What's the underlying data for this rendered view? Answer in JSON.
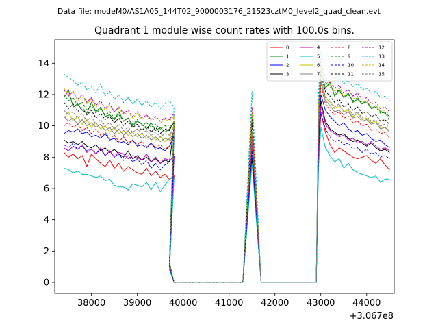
{
  "header": {
    "data_file": "Data file: modeM0/AS1A05_144T02_9000003176_21523cztM0_level2_quad_clean.evt"
  },
  "chart_data": {
    "type": "line",
    "title": "Quadrant 1 module wise count rates with 100.0s bins.",
    "xlabel": "",
    "ylabel": "",
    "x_offset_label": "+3.067e8",
    "xlim": [
      37200,
      44600
    ],
    "ylim": [
      -0.7,
      15.5
    ],
    "x_ticks": [
      38000,
      39000,
      40000,
      41000,
      42000,
      43000,
      44000
    ],
    "x_tick_labels": [
      "38000",
      "39000",
      "40000",
      "41000",
      "42000",
      "43000",
      "44000"
    ],
    "y_ticks": [
      0,
      2,
      4,
      6,
      8,
      10,
      12,
      14
    ],
    "y_tick_labels": [
      "0",
      "2",
      "4",
      "6",
      "8",
      "10",
      "12",
      "14"
    ],
    "legend_position": "top-right",
    "series": [
      {
        "name": "0",
        "color": "#ff0000",
        "style": "solid",
        "seg1": [
          8.3,
          8.0,
          8.2,
          7.9,
          8.1,
          7.4,
          8.2,
          7.9,
          7.6,
          7.4,
          7.8,
          7.3,
          7.6,
          7.1,
          7.4,
          7.2,
          7.0,
          6.9,
          7.3,
          6.8,
          7.1,
          6.7,
          6.9,
          6.6,
          6.8
        ],
        "peak": 8.6,
        "seg3": [
          8.0,
          10.8,
          9.6,
          8.8,
          8.3,
          8.6,
          8.4,
          8.2,
          8.0,
          7.9,
          8.0,
          8.1,
          7.8,
          7.6,
          7.9,
          7.5,
          7.2
        ]
      },
      {
        "name": "1",
        "color": "#008000",
        "style": "solid",
        "seg1": [
          11.8,
          12.3,
          11.2,
          11.4,
          11.0,
          10.8,
          11.5,
          10.9,
          11.2,
          10.6,
          10.7,
          10.4,
          10.9,
          10.3,
          10.5,
          10.0,
          10.3,
          10.1,
          9.8,
          10.2,
          9.7,
          9.9,
          9.6,
          9.8,
          10.2
        ],
        "peak": 10.6,
        "seg3": [
          10.8,
          13.6,
          12.4,
          12.8,
          11.9,
          12.3,
          11.8,
          12.1,
          11.5,
          11.7,
          11.4,
          11.6,
          11.1,
          11.3,
          10.9,
          10.8,
          10.6
        ]
      },
      {
        "name": "2",
        "color": "#0000ff",
        "style": "solid",
        "seg1": [
          9.5,
          9.7,
          9.6,
          9.8,
          9.5,
          9.6,
          9.3,
          9.4,
          9.2,
          9.5,
          9.1,
          9.2,
          8.9,
          9.0,
          8.8,
          9.1,
          8.7,
          8.8,
          8.6,
          8.9,
          8.5,
          8.6,
          8.4,
          8.7,
          9.3
        ],
        "peak": 8.0,
        "seg3": [
          9.0,
          12.0,
          11.0,
          10.6,
          10.3,
          10.0,
          10.2,
          9.8,
          9.6,
          9.7,
          9.4,
          9.5,
          9.2,
          9.0,
          9.1,
          8.8,
          8.6
        ]
      },
      {
        "name": "3",
        "color": "#000000",
        "style": "solid",
        "seg1": [
          9.1,
          8.9,
          9.0,
          8.8,
          9.0,
          8.7,
          8.6,
          8.8,
          8.4,
          8.6,
          8.3,
          8.5,
          8.2,
          8.0,
          8.4,
          7.9,
          8.1,
          7.8,
          8.0,
          7.7,
          7.9,
          7.6,
          7.8,
          7.7,
          9.9
        ],
        "peak": 7.8,
        "seg3": [
          8.5,
          11.6,
          10.3,
          9.8,
          9.6,
          9.4,
          9.5,
          9.2,
          9.0,
          9.1,
          8.9,
          8.7,
          8.9,
          8.6,
          8.4,
          8.5,
          8.3
        ]
      },
      {
        "name": "4",
        "color": "#bf00bf",
        "style": "solid",
        "seg1": [
          8.6,
          8.4,
          8.7,
          8.5,
          8.8,
          8.3,
          8.5,
          8.2,
          8.6,
          8.1,
          8.4,
          8.0,
          8.3,
          8.2,
          7.9,
          8.1,
          8.0,
          7.8,
          8.2,
          7.7,
          8.0,
          7.6,
          7.9,
          7.8,
          8.0
        ],
        "peak": 9.0,
        "seg3": [
          8.4,
          11.3,
          10.1,
          9.7,
          9.5,
          9.3,
          9.4,
          9.1,
          9.2,
          8.9,
          9.0,
          8.8,
          9.0,
          8.7,
          8.5,
          8.6,
          8.4
        ]
      },
      {
        "name": "5",
        "color": "#00bfbf",
        "style": "solid",
        "seg1": [
          7.3,
          7.2,
          7.0,
          7.1,
          6.9,
          6.9,
          6.8,
          6.7,
          6.8,
          6.5,
          6.6,
          6.2,
          6.1,
          6.1,
          5.9,
          6.3,
          6.2,
          6.1,
          6.4,
          5.9,
          6.4,
          5.8,
          6.2,
          6.6,
          6.7
        ],
        "peak": 7.6,
        "seg3": [
          7.3,
          9.9,
          8.6,
          8.1,
          7.7,
          7.9,
          7.3,
          7.6,
          7.2,
          7.0,
          6.9,
          6.8,
          6.7,
          6.8,
          6.4,
          6.6,
          6.6
        ]
      },
      {
        "name": "6",
        "color": "#bfbf00",
        "style": "solid",
        "seg1": [
          10.5,
          10.9,
          10.3,
          10.6,
          10.1,
          10.4,
          9.9,
          10.2,
          9.8,
          10.0,
          9.6,
          9.9,
          9.5,
          9.7,
          9.4,
          9.6,
          9.3,
          9.5,
          9.2,
          9.4,
          9.1,
          9.3,
          9.0,
          9.2,
          10.1
        ],
        "peak": 9.6,
        "seg3": [
          9.9,
          13.0,
          11.8,
          11.5,
          11.1,
          11.3,
          10.9,
          11.0,
          10.6,
          10.8,
          10.4,
          10.5,
          10.2,
          10.3,
          9.9,
          9.9,
          9.7
        ]
      },
      {
        "name": "7",
        "color": "#808080",
        "style": "solid",
        "seg1": [
          10.6,
          10.3,
          10.5,
          10.1,
          10.4,
          10.0,
          10.2,
          9.9,
          10.1,
          9.7,
          9.9,
          9.5,
          9.8,
          9.4,
          9.7,
          9.3,
          9.5,
          9.2,
          9.4,
          9.1,
          9.3,
          9.0,
          9.2,
          9.1,
          9.6
        ],
        "peak": 9.2,
        "seg3": [
          9.7,
          12.8,
          11.6,
          11.3,
          10.9,
          11.0,
          10.7,
          10.9,
          10.5,
          10.6,
          10.3,
          10.4,
          10.1,
          10.2,
          9.8,
          9.9,
          9.6
        ]
      },
      {
        "name": "8",
        "color": "#ff0000",
        "style": "dashed",
        "seg1": [
          10.0,
          10.2,
          9.9,
          10.1,
          9.7,
          9.9,
          9.5,
          9.8,
          9.4,
          9.6,
          9.2,
          9.4,
          9.0,
          9.3,
          8.9,
          9.1,
          8.8,
          9.0,
          8.7,
          8.9,
          8.6,
          8.8,
          8.5,
          8.7,
          9.8
        ],
        "peak": 9.4,
        "seg3": [
          9.6,
          12.6,
          11.4,
          11.0,
          10.7,
          10.9,
          10.5,
          10.6,
          10.2,
          10.3,
          10.0,
          10.1,
          9.7,
          9.8,
          9.5,
          9.6,
          9.2
        ]
      },
      {
        "name": "9",
        "color": "#008000",
        "style": "dashed",
        "seg1": [
          12.0,
          11.6,
          11.8,
          11.3,
          11.5,
          11.0,
          11.3,
          10.8,
          11.1,
          10.7,
          10.9,
          10.5,
          10.7,
          10.3,
          10.5,
          10.1,
          10.4,
          10.0,
          10.2,
          9.9,
          10.1,
          9.8,
          10.0,
          9.9,
          10.2
        ],
        "peak": 10.8,
        "seg3": [
          11.0,
          13.9,
          12.8,
          12.5,
          12.1,
          12.3,
          11.8,
          12.0,
          11.6,
          11.8,
          11.4,
          11.5,
          11.1,
          11.2,
          10.8,
          10.9,
          10.3
        ]
      },
      {
        "name": "10",
        "color": "#0000ff",
        "style": "dashed",
        "seg1": [
          8.8,
          8.6,
          8.9,
          8.5,
          8.7,
          8.4,
          8.6,
          8.2,
          8.5,
          8.1,
          8.4,
          8.0,
          8.2,
          7.8,
          8.1,
          7.7,
          7.9,
          7.5,
          7.8,
          7.3,
          7.6,
          7.2,
          7.5,
          7.7,
          8.2
        ],
        "peak": 8.4,
        "seg3": [
          8.2,
          10.9,
          9.8,
          9.3,
          9.0,
          9.1,
          8.8,
          8.9,
          8.5,
          8.6,
          8.3,
          8.5,
          8.2,
          8.3,
          8.0,
          8.1,
          7.9
        ]
      },
      {
        "name": "11",
        "color": "#000000",
        "style": "dashed",
        "seg1": [
          11.5,
          11.1,
          11.4,
          10.9,
          11.2,
          10.7,
          11.0,
          10.5,
          10.8,
          10.4,
          10.6,
          10.2,
          10.5,
          10.0,
          10.3,
          9.9,
          10.1,
          9.7,
          10.0,
          9.6,
          9.9,
          9.5,
          9.8,
          9.7,
          10.3
        ],
        "peak": 10.2,
        "seg3": [
          10.5,
          13.3,
          12.2,
          11.9,
          11.5,
          11.7,
          11.2,
          11.4,
          11.0,
          11.2,
          10.8,
          10.9,
          10.6,
          10.7,
          10.3,
          10.4,
          10.1
        ]
      },
      {
        "name": "12",
        "color": "#bf00bf",
        "style": "dashed",
        "seg1": [
          12.3,
          11.9,
          12.2,
          11.7,
          12.0,
          11.5,
          11.8,
          11.3,
          11.6,
          11.1,
          11.4,
          10.9,
          11.2,
          10.8,
          11.0,
          10.6,
          10.9,
          10.5,
          10.7,
          10.4,
          10.6,
          10.3,
          10.5,
          10.4,
          10.8
        ],
        "peak": 11.2,
        "seg3": [
          11.3,
          14.3,
          13.1,
          12.8,
          12.4,
          12.6,
          12.1,
          12.3,
          11.9,
          12.1,
          11.7,
          11.8,
          11.4,
          11.5,
          11.1,
          11.2,
          10.9
        ]
      },
      {
        "name": "13",
        "color": "#00bfbf",
        "style": "dashed",
        "seg1": [
          13.3,
          13.1,
          12.9,
          12.6,
          12.8,
          12.3,
          12.5,
          12.1,
          12.7,
          11.9,
          12.2,
          11.7,
          12.0,
          11.5,
          11.8,
          11.4,
          11.7,
          11.3,
          11.6,
          11.2,
          11.5,
          11.1,
          11.4,
          11.6,
          11.2
        ],
        "peak": 12.2,
        "seg3": [
          12.0,
          14.8,
          13.8,
          13.4,
          13.0,
          13.2,
          12.7,
          12.9,
          12.5,
          12.7,
          12.3,
          12.4,
          12.1,
          12.2,
          11.8,
          11.9,
          11.6
        ]
      },
      {
        "name": "14",
        "color": "#bfbf00",
        "style": "dashed",
        "seg1": [
          12.4,
          12.0,
          12.2,
          11.6,
          11.9,
          11.4,
          11.7,
          11.2,
          11.5,
          11.0,
          11.3,
          10.9,
          11.1,
          10.7,
          10.9,
          10.5,
          10.8,
          10.4,
          10.6,
          10.3,
          10.5,
          10.2,
          10.4,
          10.3,
          10.6
        ],
        "peak": 10.9,
        "seg3": [
          11.1,
          14.0,
          12.9,
          12.6,
          12.2,
          12.4,
          11.9,
          12.1,
          11.7,
          11.9,
          11.5,
          11.6,
          11.2,
          11.3,
          10.9,
          11.0,
          10.7
        ]
      },
      {
        "name": "15",
        "color": "#808080",
        "style": "dashed",
        "seg1": [
          11.0,
          10.7,
          10.9,
          10.5,
          10.8,
          10.3,
          10.6,
          10.1,
          10.4,
          10.0,
          10.2,
          9.8,
          10.1,
          9.7,
          9.9,
          9.6,
          9.8,
          9.5,
          9.7,
          9.4,
          9.6,
          9.3,
          9.5,
          9.4,
          9.9
        ],
        "peak": 9.8,
        "seg3": [
          10.0,
          13.0,
          11.9,
          11.6,
          11.2,
          11.4,
          10.9,
          11.1,
          10.7,
          10.9,
          10.5,
          10.6,
          10.3,
          10.4,
          10.0,
          10.1,
          9.9
        ]
      }
    ]
  }
}
